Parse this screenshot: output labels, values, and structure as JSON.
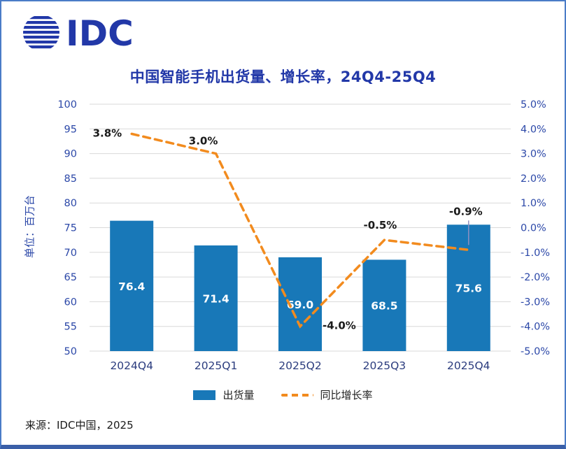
{
  "logo": {
    "text": "IDC"
  },
  "header": {
    "title": "中国智能手机出货量、增长率，24Q4-25Q4"
  },
  "axis": {
    "left_title": "单位：百万台"
  },
  "legend": {
    "bars_label": "出货量",
    "line_label": "同比增长率"
  },
  "footer": {
    "source": "来源：IDC中国，2025"
  },
  "colors": {
    "bar": "#1878b8",
    "line": "#f28b1e",
    "title": "#2238a8",
    "tick": "#2c48a8",
    "category": "#2b3c7e",
    "grid": "#d9d9d9",
    "annotation": "#1a1a1a",
    "bar_label": "#ffffff",
    "border": "#4a7cc7",
    "leader": "#8f8fc0"
  },
  "chart_data": {
    "type": "bar+line combo",
    "title": "中国智能手机出货量、增长率，24Q4-25Q4",
    "categories": [
      "2024Q4",
      "2025Q1",
      "2025Q2",
      "2025Q3",
      "2025Q4"
    ],
    "series": [
      {
        "name": "出货量",
        "type": "bar",
        "axis": "left",
        "values": [
          76.4,
          71.4,
          69.0,
          68.5,
          75.6
        ],
        "labels": [
          "76.4",
          "71.4",
          "69.0",
          "68.5",
          "75.6"
        ]
      },
      {
        "name": "同比增长率",
        "type": "line",
        "axis": "right",
        "values": [
          3.8,
          3.0,
          -4.0,
          -0.5,
          -0.9
        ],
        "labels": [
          "3.8%",
          "3.0%",
          "-4.0%",
          "-0.5%",
          "-0.9%"
        ]
      }
    ],
    "left_axis": {
      "min": 50,
      "max": 100,
      "step": 5,
      "title": "单位：百万台"
    },
    "right_axis": {
      "min": -5,
      "max": 5,
      "step": 1,
      "format": "percent_1dp"
    },
    "grid": "horizontal",
    "legend_position": "bottom",
    "source": "来源：IDC中国，2025"
  }
}
